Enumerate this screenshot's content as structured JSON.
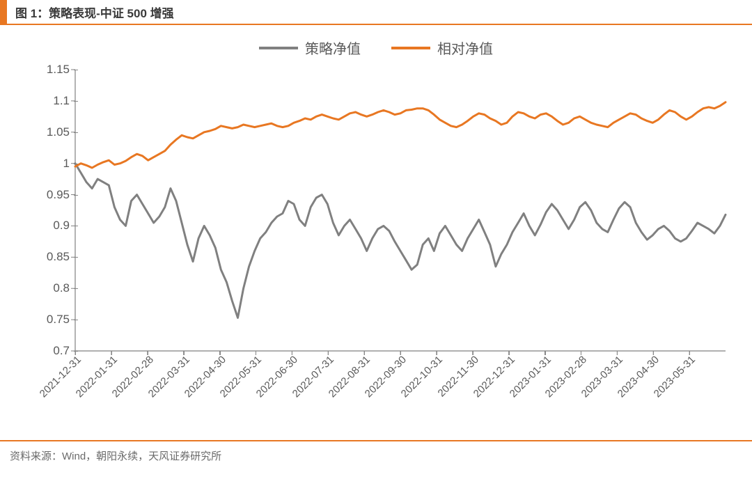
{
  "title": "图 1：策略表现-中证 500 增强",
  "source": "资料来源：Wind，朝阳永续，天风证券研究所",
  "colors": {
    "accent": "#e87722",
    "title_block": "#e87722",
    "title_text": "#3a3a3a",
    "axis_text": "#595959",
    "axis_line": "#808080",
    "background": "#ffffff",
    "source_text": "#6a6a6a"
  },
  "legend": {
    "fontsize": 20,
    "items": [
      {
        "label": "策略净值",
        "color": "#808080"
      },
      {
        "label": "相对净值",
        "color": "#e87722"
      }
    ]
  },
  "chart": {
    "type": "line",
    "line_width": 3,
    "grid": false,
    "y": {
      "lim": [
        0.7,
        1.15
      ],
      "ticks": [
        0.7,
        0.75,
        0.8,
        0.85,
        0.9,
        0.95,
        1.0,
        1.05,
        1.1,
        1.15
      ],
      "tick_labels": [
        "0.7",
        "0.75",
        "0.8",
        "0.85",
        "0.9",
        "0.95",
        "1",
        "1.05",
        "1.1",
        "1.15"
      ],
      "label_fontsize": 17
    },
    "x": {
      "rotation_deg": -45,
      "label_fontsize": 15,
      "categories": [
        "2021-12-31",
        "2022-01-31",
        "2022-02-28",
        "2022-03-31",
        "2022-04-30",
        "2022-05-31",
        "2022-06-30",
        "2022-07-31",
        "2022-08-31",
        "2022-09-30",
        "2022-10-31",
        "2022-11-30",
        "2022-12-31",
        "2023-01-31",
        "2023-02-28",
        "2023-03-31",
        "2023-04-30",
        "2023-05-31"
      ]
    },
    "series": [
      {
        "name": "策略净值",
        "color": "#808080",
        "values": [
          1.0,
          0.985,
          0.97,
          0.96,
          0.975,
          0.97,
          0.965,
          0.93,
          0.91,
          0.9,
          0.94,
          0.95,
          0.935,
          0.92,
          0.905,
          0.915,
          0.93,
          0.96,
          0.94,
          0.905,
          0.87,
          0.843,
          0.88,
          0.9,
          0.885,
          0.865,
          0.83,
          0.81,
          0.78,
          0.753,
          0.8,
          0.835,
          0.86,
          0.88,
          0.89,
          0.905,
          0.915,
          0.92,
          0.94,
          0.935,
          0.91,
          0.9,
          0.93,
          0.945,
          0.95,
          0.935,
          0.905,
          0.885,
          0.9,
          0.91,
          0.895,
          0.88,
          0.86,
          0.88,
          0.895,
          0.9,
          0.892,
          0.875,
          0.86,
          0.845,
          0.83,
          0.838,
          0.87,
          0.88,
          0.86,
          0.888,
          0.9,
          0.885,
          0.87,
          0.86,
          0.88,
          0.895,
          0.91,
          0.89,
          0.87,
          0.835,
          0.855,
          0.87,
          0.89,
          0.905,
          0.92,
          0.9,
          0.885,
          0.902,
          0.922,
          0.935,
          0.925,
          0.91,
          0.895,
          0.91,
          0.93,
          0.938,
          0.925,
          0.905,
          0.895,
          0.89,
          0.91,
          0.928,
          0.938,
          0.93,
          0.905,
          0.89,
          0.878,
          0.885,
          0.895,
          0.9,
          0.892,
          0.88,
          0.875,
          0.88,
          0.892,
          0.905,
          0.9,
          0.895,
          0.888,
          0.9,
          0.918
        ]
      },
      {
        "name": "相对净值",
        "color": "#e87722",
        "values": [
          0.995,
          1.0,
          0.997,
          0.993,
          0.998,
          1.002,
          1.005,
          0.998,
          1.0,
          1.004,
          1.01,
          1.015,
          1.012,
          1.005,
          1.01,
          1.015,
          1.02,
          1.03,
          1.038,
          1.045,
          1.042,
          1.04,
          1.045,
          1.05,
          1.052,
          1.055,
          1.06,
          1.058,
          1.056,
          1.058,
          1.062,
          1.06,
          1.058,
          1.06,
          1.062,
          1.064,
          1.06,
          1.058,
          1.06,
          1.065,
          1.068,
          1.072,
          1.07,
          1.075,
          1.078,
          1.075,
          1.072,
          1.07,
          1.075,
          1.08,
          1.082,
          1.078,
          1.075,
          1.078,
          1.082,
          1.085,
          1.082,
          1.078,
          1.08,
          1.085,
          1.086,
          1.088,
          1.088,
          1.085,
          1.078,
          1.07,
          1.065,
          1.06,
          1.058,
          1.062,
          1.068,
          1.075,
          1.08,
          1.078,
          1.072,
          1.068,
          1.062,
          1.065,
          1.075,
          1.082,
          1.08,
          1.075,
          1.072,
          1.078,
          1.08,
          1.075,
          1.068,
          1.062,
          1.065,
          1.072,
          1.075,
          1.07,
          1.065,
          1.062,
          1.06,
          1.058,
          1.065,
          1.07,
          1.075,
          1.08,
          1.078,
          1.072,
          1.068,
          1.065,
          1.07,
          1.078,
          1.085,
          1.082,
          1.075,
          1.07,
          1.075,
          1.082,
          1.088,
          1.09,
          1.088,
          1.092,
          1.098
        ]
      }
    ]
  }
}
